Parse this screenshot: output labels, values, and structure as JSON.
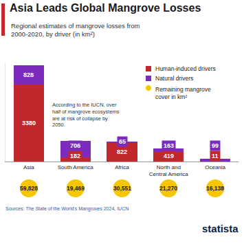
{
  "chart_data": {
    "type": "bar",
    "title": "Asia Leads Global Mangrove Losses",
    "subtitle": "Regional estimates of mangrove losses from 2000-2020, by driver (in km²)",
    "annotation": "According to the IUCN, over half of mangrove ecosystems are at risk of collapse by 2050.",
    "source": "Sources: The State of the World's Mangroves 2024, IUCN",
    "logo": "statista",
    "categories": [
      "Asia",
      "South America",
      "Africa",
      "North and Central America",
      "Oceania"
    ],
    "series": [
      {
        "name": "Human-induced drivers",
        "color": "#c1272d",
        "values": [
          3380,
          182,
          822,
          419,
          11
        ]
      },
      {
        "name": "Natural drivers",
        "color": "#7b2cbf",
        "values": [
          828,
          706,
          65,
          163,
          99
        ]
      }
    ],
    "remaining_cover": {
      "name": "Remaining mangrove cover in km²",
      "color": "#f6c700",
      "values": [
        59828,
        19469,
        30551,
        21270,
        16138
      ],
      "value_labels": [
        "59,828",
        "19,469",
        "30,551",
        "21,270",
        "16,138"
      ]
    },
    "ylim": [
      0,
      4300
    ],
    "yticks": [],
    "stacked": true,
    "data_labels": true,
    "tick_labels": "x",
    "grid": false
  }
}
